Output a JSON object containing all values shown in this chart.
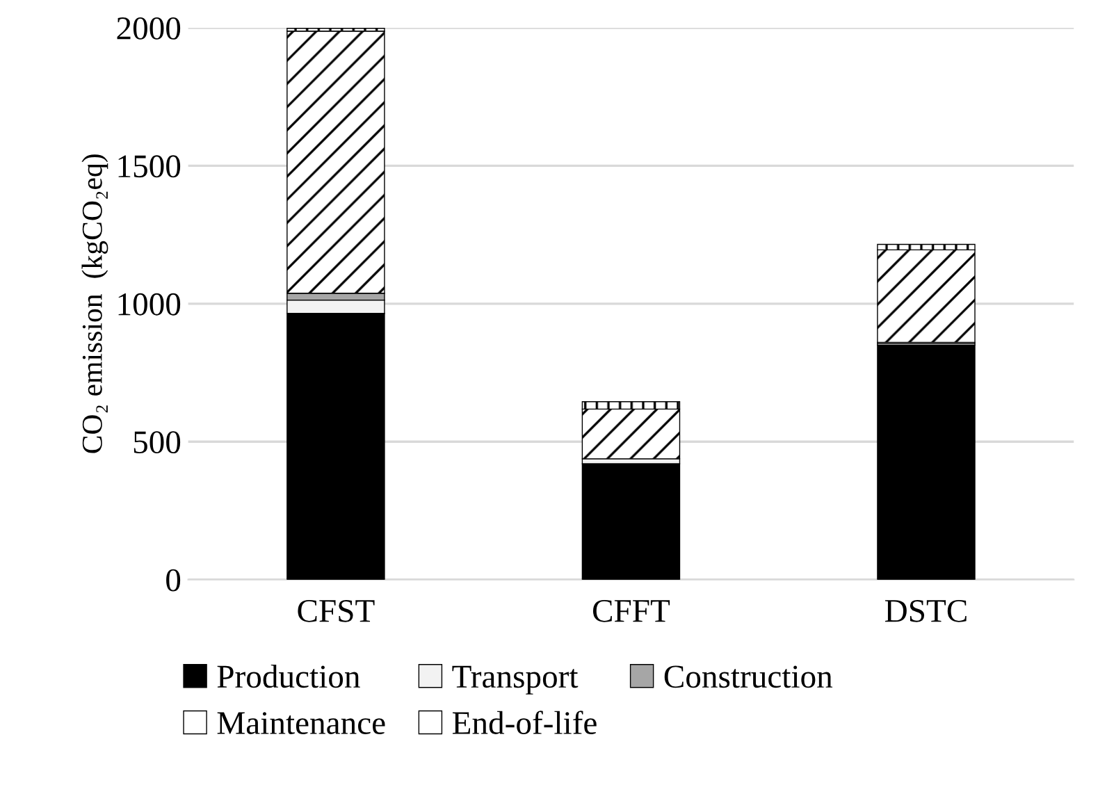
{
  "chart_data": {
    "type": "bar",
    "stacked": true,
    "ylabel": "CO₂ emission  (kgCO₂eq)",
    "categories": [
      "CFST",
      "CFFT",
      "DSTC"
    ],
    "series": [
      {
        "name": "Production",
        "color": "#000000",
        "values": [
          965,
          420,
          850
        ]
      },
      {
        "name": "Transport",
        "color": "#f2f2f2",
        "values": [
          48,
          18,
          5
        ]
      },
      {
        "name": "Construction",
        "color": "#a6a6a6",
        "values": [
          25,
          null,
          5
        ]
      },
      {
        "name": "Maintenance",
        "color": "#ffffff",
        "values": [
          950,
          180,
          335
        ]
      },
      {
        "name": "End-of-life",
        "color": "#ffffff",
        "values": [
          10,
          27,
          20
        ]
      }
    ],
    "ylim": [
      0,
      2000
    ],
    "yticks": [
      0,
      500,
      1000,
      1500,
      2000
    ],
    "grid": "y",
    "legend": "bottom"
  }
}
